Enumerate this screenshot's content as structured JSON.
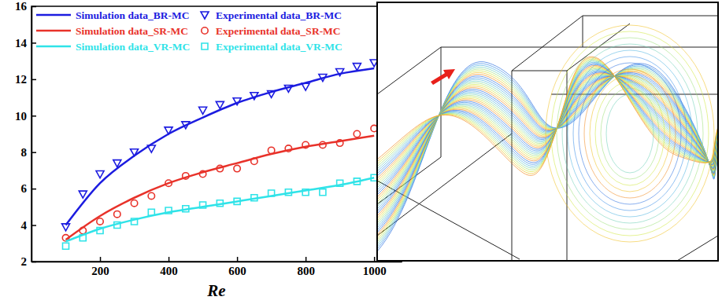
{
  "chart_data": {
    "type": "line",
    "x_label": "Re",
    "xlim": [
      0,
      1080
    ],
    "xticks": [
      200,
      400,
      600,
      800,
      1000
    ],
    "ylim": [
      2,
      16
    ],
    "yticks": [
      2,
      4,
      6,
      8,
      10,
      12,
      14,
      16
    ],
    "legend": "upper left",
    "grid": false,
    "series": [
      {
        "name": "Simulation data_BR-MC",
        "type": "line",
        "color": "#1c1ce0",
        "line_style": "solid",
        "x": [
          100,
          200,
          300,
          400,
          500,
          600,
          700,
          800,
          900,
          1000
        ],
        "values": [
          4.0,
          6.3,
          7.8,
          9.0,
          9.9,
          10.7,
          11.3,
          11.8,
          12.3,
          12.6
        ]
      },
      {
        "name": "Experimental data_BR-MC",
        "type": "scatter",
        "color": "#1c1ce0",
        "marker": "triangle-down",
        "x": [
          100,
          150,
          200,
          250,
          300,
          350,
          400,
          450,
          500,
          550,
          600,
          650,
          700,
          750,
          800,
          850,
          900,
          950,
          1000
        ],
        "values": [
          3.9,
          5.7,
          6.8,
          7.4,
          8.0,
          8.2,
          9.2,
          9.5,
          10.3,
          10.6,
          10.8,
          11.1,
          11.2,
          11.5,
          11.6,
          12.1,
          12.4,
          12.7,
          12.9
        ]
      },
      {
        "name": "Simulation data_SR-MC",
        "type": "line",
        "color": "#e8322a",
        "line_style": "solid",
        "x": [
          100,
          200,
          300,
          400,
          500,
          600,
          700,
          800,
          900,
          1000
        ],
        "values": [
          3.2,
          4.5,
          5.5,
          6.3,
          6.9,
          7.4,
          7.9,
          8.3,
          8.6,
          8.9
        ]
      },
      {
        "name": "Experimental data_SR-MC",
        "type": "scatter",
        "color": "#e8322a",
        "marker": "circle",
        "x": [
          100,
          150,
          200,
          250,
          300,
          350,
          400,
          450,
          500,
          550,
          600,
          650,
          700,
          750,
          800,
          850,
          900,
          950,
          1000
        ],
        "values": [
          3.3,
          3.7,
          4.2,
          4.6,
          5.2,
          5.6,
          6.3,
          6.7,
          6.8,
          7.1,
          7.1,
          7.5,
          8.1,
          8.2,
          8.4,
          8.4,
          8.5,
          9.0,
          9.3
        ]
      },
      {
        "name": "Simulation data_VR-MC",
        "type": "line",
        "color": "#2fe3e8",
        "line_style": "solid",
        "x": [
          100,
          200,
          300,
          400,
          500,
          600,
          700,
          800,
          900,
          1000
        ],
        "values": [
          3.1,
          3.8,
          4.3,
          4.7,
          5.0,
          5.3,
          5.6,
          5.9,
          6.2,
          6.6
        ]
      },
      {
        "name": "Experimental data_VR-MC",
        "type": "scatter",
        "color": "#2fe3e8",
        "marker": "square",
        "x": [
          100,
          150,
          200,
          250,
          300,
          350,
          400,
          450,
          500,
          550,
          600,
          650,
          700,
          750,
          800,
          850,
          900,
          950,
          1000
        ],
        "values": [
          2.85,
          3.3,
          3.7,
          4.0,
          4.2,
          4.7,
          4.8,
          4.9,
          5.1,
          5.2,
          5.3,
          5.5,
          5.75,
          5.8,
          5.8,
          5.8,
          6.3,
          6.4,
          6.6
        ]
      }
    ]
  }
}
